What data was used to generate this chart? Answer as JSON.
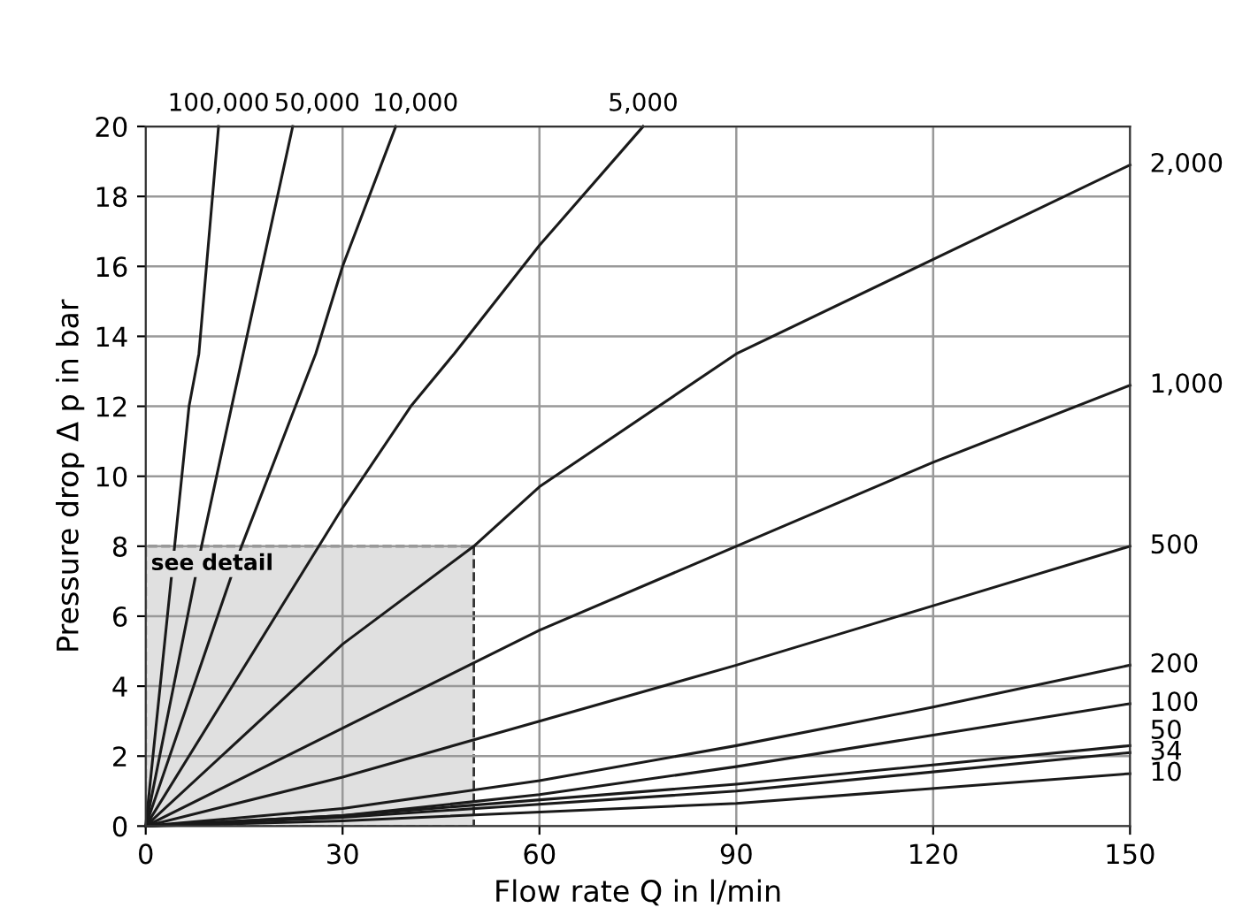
{
  "chart_data": {
    "type": "line",
    "xlabel": "Flow rate Q in l/min",
    "ylabel": "Pressure drop Δ p in bar",
    "xlim": [
      0,
      150
    ],
    "ylim": [
      0,
      20
    ],
    "xticks": [
      0,
      30,
      60,
      90,
      120,
      150
    ],
    "yticks": [
      0,
      2,
      4,
      6,
      8,
      10,
      12,
      14,
      16,
      18,
      20
    ],
    "grid": true,
    "marker": "none",
    "line_style": "solid",
    "annotations": [
      {
        "text": "see detail",
        "x": 0,
        "y": 8
      }
    ],
    "bands": [
      {
        "axis": "x",
        "from": 0,
        "to": 50,
        "color": "#e0e0e0"
      }
    ],
    "series": [
      {
        "name": "100,000",
        "color": "#1a1a1a",
        "x": [
          0,
          6.6,
          8.1,
          11.1
        ],
        "values": [
          0,
          12,
          13.5,
          20
        ]
      },
      {
        "name": "50,000",
        "color": "#1a1a1a",
        "x": [
          0,
          8.5,
          13.1,
          22.4
        ],
        "values": [
          0,
          8,
          12,
          20
        ]
      },
      {
        "name": "10,000",
        "color": "#1a1a1a",
        "x": [
          0,
          14.6,
          25.9,
          30,
          38.1
        ],
        "values": [
          0,
          8,
          13.5,
          16,
          20
        ]
      },
      {
        "name": "5,000",
        "color": "#1a1a1a",
        "x": [
          0,
          30,
          40.4,
          47,
          60,
          75.8
        ],
        "values": [
          0,
          9.1,
          12,
          13.5,
          16.6,
          20
        ]
      },
      {
        "name": "2,000",
        "color": "#1a1a1a",
        "x": [
          0,
          30,
          50,
          60,
          90,
          120,
          150
        ],
        "values": [
          0,
          5.2,
          8,
          9.7,
          13.5,
          16.2,
          18.9
        ]
      },
      {
        "name": "1,000",
        "color": "#1a1a1a",
        "x": [
          0,
          30,
          60,
          90,
          120,
          150
        ],
        "values": [
          0,
          2.8,
          5.6,
          8,
          10.4,
          12.6
        ]
      },
      {
        "name": "500",
        "color": "#1a1a1a",
        "x": [
          0,
          30,
          60,
          90,
          120,
          150
        ],
        "values": [
          0,
          1.4,
          3,
          4.6,
          6.3,
          8
        ]
      },
      {
        "name": "200",
        "color": "#1a1a1a",
        "x": [
          0,
          30,
          60,
          90,
          120,
          150
        ],
        "values": [
          0,
          0.5,
          1.3,
          2.3,
          3.4,
          4.6
        ]
      },
      {
        "name": "100",
        "color": "#1a1a1a",
        "x": [
          0,
          30,
          60,
          90,
          120,
          150
        ],
        "values": [
          0,
          0.3,
          0.9,
          1.7,
          2.6,
          3.5
        ]
      },
      {
        "name": "50",
        "color": "#1a1a1a",
        "x": [
          0,
          30,
          90,
          150
        ],
        "values": [
          0,
          0.3,
          1.2,
          2.3
        ]
      },
      {
        "name": "34",
        "color": "#1a1a1a",
        "x": [
          0,
          30,
          90,
          150
        ],
        "values": [
          0,
          0.25,
          1,
          2.1
        ]
      },
      {
        "name": "10",
        "color": "#1a1a1a",
        "x": [
          0,
          30,
          90,
          150
        ],
        "values": [
          0,
          0.15,
          0.65,
          1.5
        ]
      }
    ]
  }
}
